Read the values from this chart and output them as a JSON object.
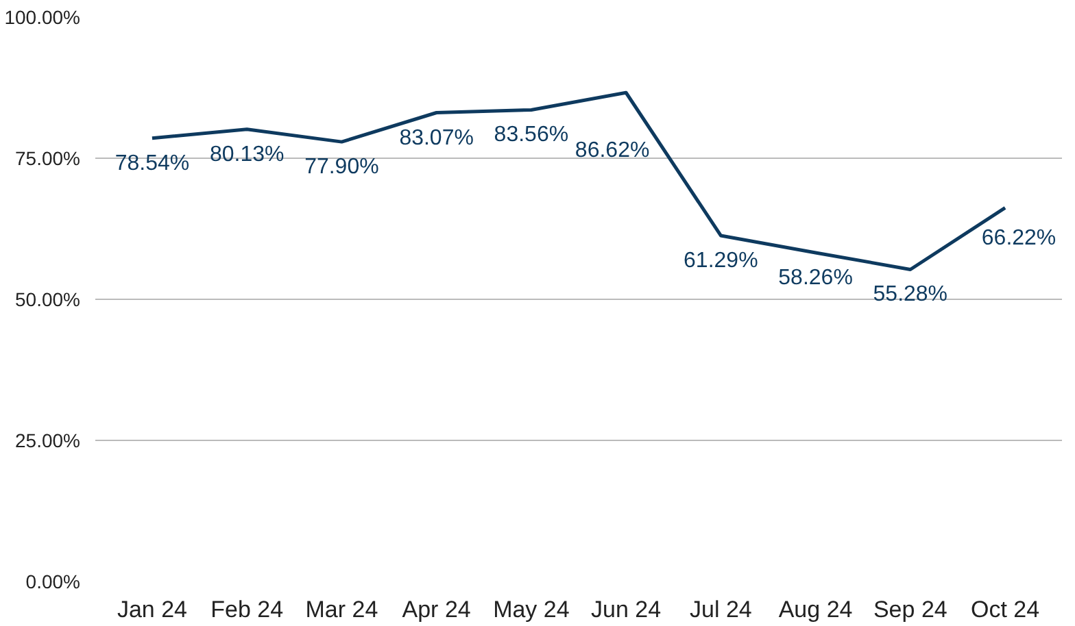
{
  "chart_data": {
    "type": "line",
    "categories": [
      "Jan 24",
      "Feb 24",
      "Mar 24",
      "Apr 24",
      "May 24",
      "Jun 24",
      "Jul 24",
      "Aug 24",
      "Sep 24",
      "Oct 24"
    ],
    "series": [
      {
        "color": "#0e3a5f",
        "values": [
          78.54,
          80.13,
          77.9,
          83.07,
          83.56,
          86.62,
          61.29,
          58.26,
          55.28,
          66.22
        ],
        "value_labels": [
          "78.54%",
          "80.13%",
          "77.90%",
          "83.07%",
          "83.56%",
          "86.62%",
          "61.29%",
          "58.26%",
          "55.28%",
          "66.22%"
        ]
      }
    ],
    "ylim": [
      0,
      100
    ],
    "yticks": [
      {
        "value": 0,
        "label": "0.00%"
      },
      {
        "value": 25,
        "label": "25.00%"
      },
      {
        "value": 50,
        "label": "50.00%"
      },
      {
        "value": 75,
        "label": "75.00%"
      },
      {
        "value": 100,
        "label": "100.00%"
      }
    ],
    "grid": "y",
    "marker": "none",
    "line_style": "solid"
  }
}
